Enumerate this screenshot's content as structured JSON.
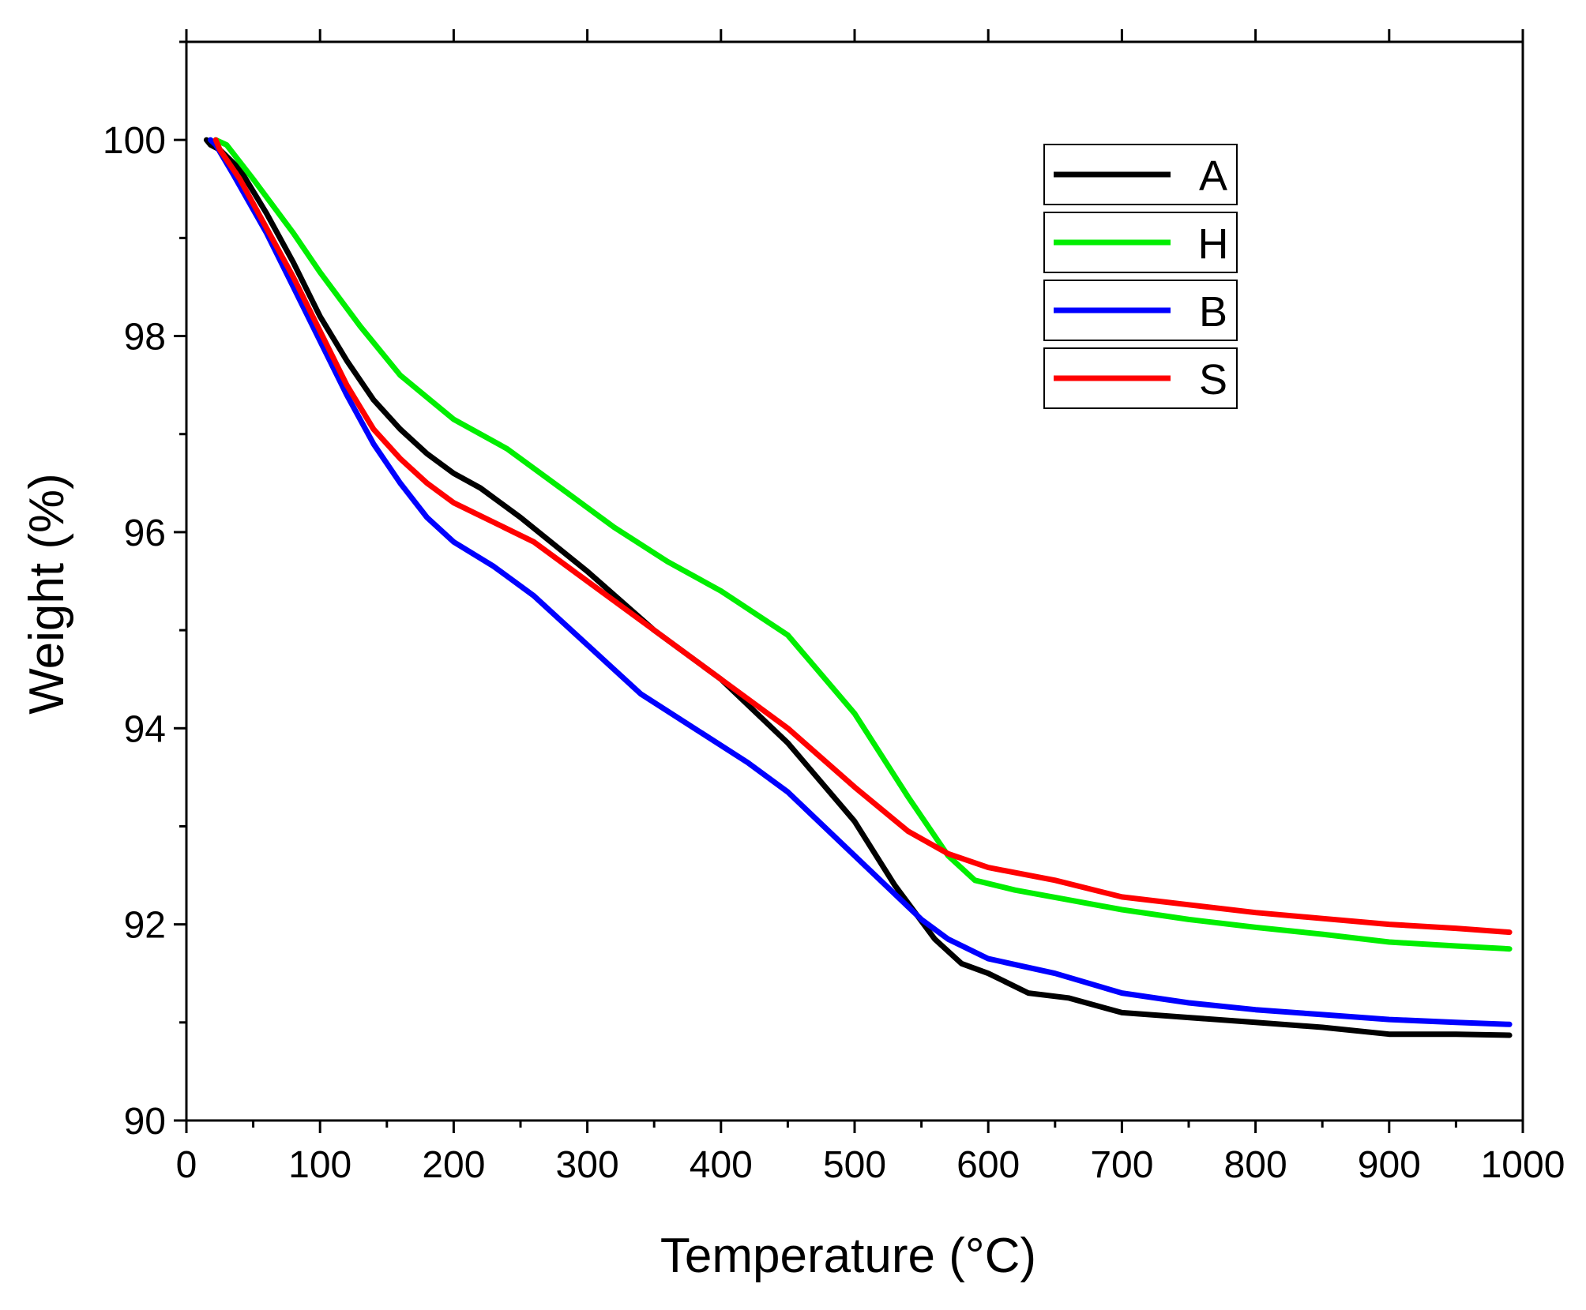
{
  "chart_data": {
    "type": "line",
    "title": "",
    "xlabel": "Temperature (°C)",
    "ylabel": "Weight (%)",
    "xlim": [
      0,
      1000
    ],
    "ylim": [
      90,
      101
    ],
    "xticks": [
      0,
      100,
      200,
      300,
      400,
      500,
      600,
      700,
      800,
      900,
      1000
    ],
    "yticks": [
      90,
      92,
      94,
      96,
      98,
      100
    ],
    "x_minor_step": 50,
    "y_minor_step": 1,
    "grid": false,
    "legend_position": "top-right",
    "series": [
      {
        "name": "A",
        "color": "#000000",
        "points": [
          [
            15,
            100
          ],
          [
            18,
            99.95
          ],
          [
            25,
            99.9
          ],
          [
            40,
            99.7
          ],
          [
            60,
            99.25
          ],
          [
            80,
            98.75
          ],
          [
            100,
            98.2
          ],
          [
            120,
            97.75
          ],
          [
            140,
            97.35
          ],
          [
            160,
            97.05
          ],
          [
            180,
            96.8
          ],
          [
            200,
            96.6
          ],
          [
            220,
            96.45
          ],
          [
            250,
            96.15
          ],
          [
            300,
            95.6
          ],
          [
            350,
            95.0
          ],
          [
            400,
            94.5
          ],
          [
            450,
            93.85
          ],
          [
            500,
            93.05
          ],
          [
            530,
            92.4
          ],
          [
            560,
            91.85
          ],
          [
            580,
            91.6
          ],
          [
            600,
            91.5
          ],
          [
            630,
            91.3
          ],
          [
            660,
            91.25
          ],
          [
            700,
            91.1
          ],
          [
            750,
            91.05
          ],
          [
            800,
            91.0
          ],
          [
            850,
            90.95
          ],
          [
            900,
            90.88
          ],
          [
            950,
            90.88
          ],
          [
            990,
            90.87
          ]
        ]
      },
      {
        "name": "H",
        "color": "#00ee00",
        "points": [
          [
            22,
            100
          ],
          [
            30,
            99.95
          ],
          [
            50,
            99.6
          ],
          [
            80,
            99.05
          ],
          [
            100,
            98.65
          ],
          [
            130,
            98.1
          ],
          [
            160,
            97.6
          ],
          [
            200,
            97.15
          ],
          [
            240,
            96.85
          ],
          [
            280,
            96.45
          ],
          [
            320,
            96.05
          ],
          [
            360,
            95.7
          ],
          [
            400,
            95.4
          ],
          [
            450,
            94.95
          ],
          [
            500,
            94.15
          ],
          [
            540,
            93.3
          ],
          [
            570,
            92.7
          ],
          [
            590,
            92.45
          ],
          [
            620,
            92.35
          ],
          [
            660,
            92.25
          ],
          [
            700,
            92.15
          ],
          [
            750,
            92.05
          ],
          [
            800,
            91.97
          ],
          [
            850,
            91.9
          ],
          [
            900,
            91.82
          ],
          [
            950,
            91.78
          ],
          [
            990,
            91.75
          ]
        ]
      },
      {
        "name": "B",
        "color": "#0000ff",
        "points": [
          [
            18,
            100
          ],
          [
            22,
            99.95
          ],
          [
            35,
            99.65
          ],
          [
            60,
            99.05
          ],
          [
            80,
            98.5
          ],
          [
            100,
            97.95
          ],
          [
            120,
            97.4
          ],
          [
            140,
            96.9
          ],
          [
            160,
            96.5
          ],
          [
            180,
            96.15
          ],
          [
            200,
            95.9
          ],
          [
            230,
            95.65
          ],
          [
            260,
            95.35
          ],
          [
            300,
            94.85
          ],
          [
            340,
            94.35
          ],
          [
            380,
            94.0
          ],
          [
            420,
            93.65
          ],
          [
            450,
            93.35
          ],
          [
            500,
            92.7
          ],
          [
            550,
            92.05
          ],
          [
            570,
            91.85
          ],
          [
            600,
            91.65
          ],
          [
            650,
            91.5
          ],
          [
            700,
            91.3
          ],
          [
            750,
            91.2
          ],
          [
            800,
            91.13
          ],
          [
            850,
            91.08
          ],
          [
            900,
            91.03
          ],
          [
            950,
            91.0
          ],
          [
            990,
            90.98
          ]
        ]
      },
      {
        "name": "S",
        "color": "#ff0000",
        "points": [
          [
            22,
            100
          ],
          [
            25,
            99.9
          ],
          [
            40,
            99.6
          ],
          [
            60,
            99.1
          ],
          [
            80,
            98.6
          ],
          [
            100,
            98.05
          ],
          [
            120,
            97.5
          ],
          [
            140,
            97.05
          ],
          [
            160,
            96.75
          ],
          [
            180,
            96.5
          ],
          [
            200,
            96.3
          ],
          [
            230,
            96.1
          ],
          [
            260,
            95.9
          ],
          [
            300,
            95.5
          ],
          [
            350,
            95.0
          ],
          [
            400,
            94.5
          ],
          [
            450,
            94.0
          ],
          [
            500,
            93.4
          ],
          [
            540,
            92.95
          ],
          [
            570,
            92.72
          ],
          [
            600,
            92.58
          ],
          [
            650,
            92.45
          ],
          [
            700,
            92.28
          ],
          [
            750,
            92.2
          ],
          [
            800,
            92.12
          ],
          [
            850,
            92.06
          ],
          [
            900,
            92.0
          ],
          [
            950,
            91.96
          ],
          [
            990,
            91.92
          ]
        ]
      }
    ]
  }
}
